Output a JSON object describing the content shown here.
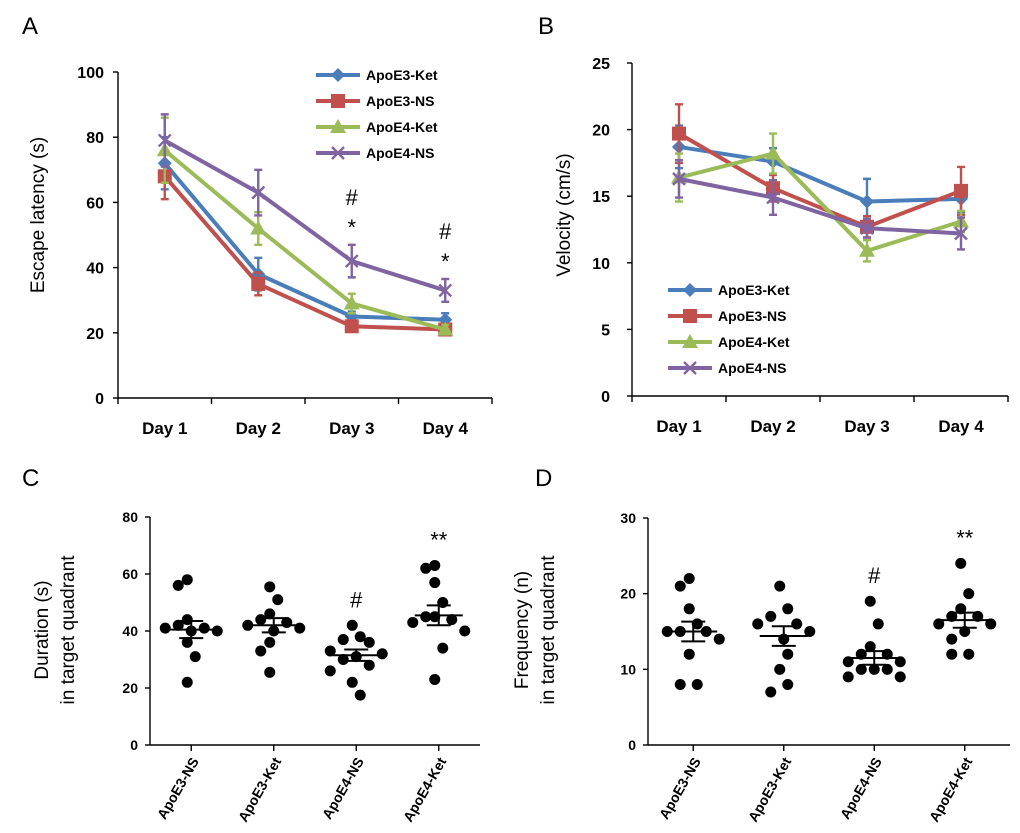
{
  "chart_data": [
    {
      "id": "A",
      "panel_label": "A",
      "type": "line",
      "title": "",
      "xlabel": "",
      "ylabel": "Escape latency (s)",
      "categories": [
        "Day 1",
        "Day 2",
        "Day 3",
        "Day 4"
      ],
      "ylim": [
        0,
        100
      ],
      "yticks": [
        "0",
        "20",
        "40",
        "60",
        "80",
        "100"
      ],
      "legend_position": "top-right",
      "series": [
        {
          "name": "ApoE3-Ket",
          "color": "#4A7EBB",
          "marker": "diamond",
          "values": [
            72,
            38,
            25,
            24
          ],
          "errors": [
            8,
            5,
            1.5,
            2
          ]
        },
        {
          "name": "ApoE3-NS",
          "color": "#C0504D",
          "marker": "square",
          "values": [
            68,
            35,
            22,
            21
          ],
          "errors": [
            7,
            3.5,
            1.5,
            1.5
          ]
        },
        {
          "name": "ApoE4-Ket",
          "color": "#9BBB59",
          "marker": "triangle",
          "values": [
            76,
            52,
            29,
            21
          ],
          "errors": [
            10,
            5,
            3,
            1.5
          ]
        },
        {
          "name": "ApoE4-NS",
          "color": "#8064A2",
          "marker": "x",
          "values": [
            79,
            63,
            42,
            33
          ],
          "errors": [
            8,
            7,
            5,
            3.5
          ]
        }
      ],
      "annotations": [
        {
          "category": "Day 3",
          "top": "#",
          "bottom": "*"
        },
        {
          "category": "Day 4",
          "top": "#",
          "bottom": "*"
        }
      ]
    },
    {
      "id": "B",
      "panel_label": "B",
      "type": "line",
      "title": "",
      "xlabel": "",
      "ylabel": "Velocity (cm/s)",
      "categories": [
        "Day 1",
        "Day 2",
        "Day 3",
        "Day 4"
      ],
      "ylim": [
        0,
        25
      ],
      "yticks": [
        "0",
        "5",
        "10",
        "15",
        "20",
        "25"
      ],
      "legend_position": "bottom-left",
      "series": [
        {
          "name": "ApoE3-Ket",
          "color": "#4A7EBB",
          "marker": "diamond",
          "values": [
            18.7,
            17.6,
            14.6,
            14.8
          ],
          "errors": [
            1.6,
            1.0,
            1.7,
            1.0
          ]
        },
        {
          "name": "ApoE3-NS",
          "color": "#C0504D",
          "marker": "square",
          "values": [
            19.7,
            15.6,
            12.7,
            15.4
          ],
          "errors": [
            2.2,
            1.0,
            0.8,
            1.8
          ]
        },
        {
          "name": "ApoE4-Ket",
          "color": "#9BBB59",
          "marker": "triangle",
          "values": [
            16.4,
            18.2,
            10.9,
            13.1
          ],
          "errors": [
            1.8,
            1.5,
            0.8,
            0.8
          ]
        },
        {
          "name": "ApoE4-NS",
          "color": "#8064A2",
          "marker": "x",
          "values": [
            16.3,
            14.9,
            12.6,
            12.2
          ],
          "errors": [
            1.4,
            1.3,
            0.7,
            1.2
          ]
        }
      ]
    },
    {
      "id": "C",
      "panel_label": "C",
      "type": "scatter",
      "title": "",
      "xlabel": "",
      "ylabel": "Duration (s)",
      "ylabel2": "in target quadrant",
      "categories": [
        "ApoE3-NS",
        "ApoE3-Ket",
        "ApoE4-NS",
        "ApoE4-Ket"
      ],
      "ylim": [
        0,
        80
      ],
      "yticks": [
        "0",
        "20",
        "40",
        "60",
        "80"
      ],
      "groups": [
        {
          "name": "ApoE3-NS",
          "points": [
            58,
            56,
            44,
            42,
            41,
            41,
            40,
            40,
            36,
            31,
            22
          ],
          "mean": 40.5,
          "sem": 3
        },
        {
          "name": "ApoE3-Ket",
          "points": [
            55.5,
            51,
            46,
            44,
            43,
            42,
            41,
            40,
            36,
            33,
            25.5
          ],
          "mean": 42,
          "sem": 2.5
        },
        {
          "name": "ApoE4-NS",
          "points": [
            42,
            38,
            37,
            36,
            33,
            32,
            31,
            30,
            28,
            26,
            22,
            17.5
          ],
          "mean": 31.5,
          "sem": 2
        },
        {
          "name": "ApoE4-Ket",
          "points": [
            63,
            62,
            57,
            50,
            45,
            45,
            44,
            43,
            40,
            34,
            23
          ],
          "mean": 45.5,
          "sem": 3.5
        }
      ],
      "annotations": [
        {
          "category": "ApoE4-NS",
          "text": "#"
        },
        {
          "category": "ApoE4-Ket",
          "text": "**"
        }
      ]
    },
    {
      "id": "D",
      "panel_label": "D",
      "type": "scatter",
      "title": "",
      "xlabel": "",
      "ylabel": "Frequency (n)",
      "ylabel2": "in target quadrant",
      "categories": [
        "ApoE3-NS",
        "ApoE3-Ket",
        "ApoE4-NS",
        "ApoE4-Ket"
      ],
      "ylim": [
        0,
        30
      ],
      "yticks": [
        "0",
        "10",
        "20",
        "30"
      ],
      "groups": [
        {
          "name": "ApoE3-NS",
          "points": [
            22,
            21,
            18,
            16,
            15,
            15,
            15,
            14,
            12,
            8,
            8
          ],
          "mean": 15,
          "sem": 1.3
        },
        {
          "name": "ApoE3-Ket",
          "points": [
            21,
            18,
            17,
            16,
            16,
            15,
            14,
            12,
            10,
            8,
            7
          ],
          "mean": 14.4,
          "sem": 1.3
        },
        {
          "name": "ApoE4-NS",
          "points": [
            19,
            16,
            13,
            12,
            12,
            11,
            11,
            10,
            10,
            10,
            9,
            9
          ],
          "mean": 11.5,
          "sem": 0.9
        },
        {
          "name": "ApoE4-Ket",
          "points": [
            24,
            20,
            18,
            17,
            17,
            16,
            16,
            15,
            14,
            12,
            12
          ],
          "mean": 16.5,
          "sem": 1
        }
      ],
      "annotations": [
        {
          "category": "ApoE4-NS",
          "text": "#"
        },
        {
          "category": "ApoE4-Ket",
          "text": "**"
        }
      ]
    }
  ]
}
